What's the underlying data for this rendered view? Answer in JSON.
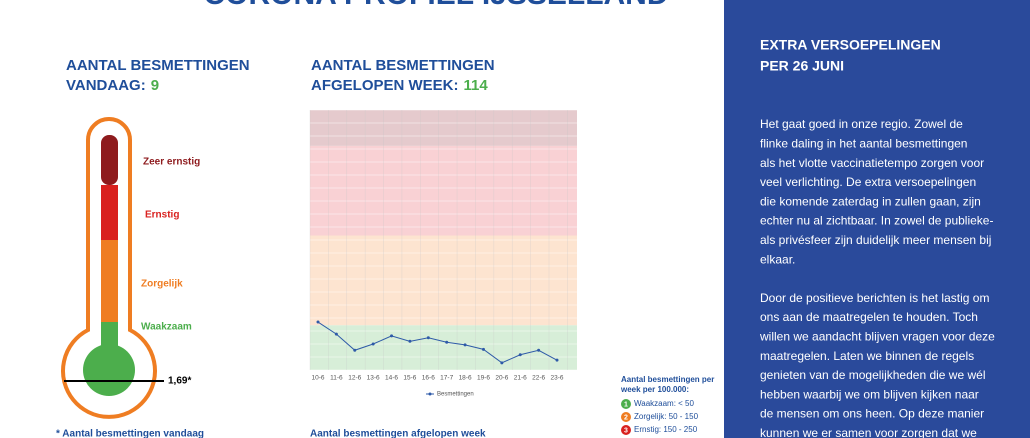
{
  "header": {
    "title": "CORONA PROFIEL IJSSELLAND"
  },
  "today": {
    "lines": [
      "AANTAL BESMETTINGEN",
      "VANDAAG:"
    ],
    "value": 9,
    "footnote": "* Aantal besmettingen vandaag"
  },
  "thermometer": {
    "levels": [
      {
        "label": "Zeer ernstig",
        "color": "#8e1b1e"
      },
      {
        "label": "Ernstig",
        "color": "#d9211f"
      },
      {
        "label": "Zorgelijk",
        "color": "#ef7d22"
      },
      {
        "label": "Waakzaam",
        "color": "#4cae4c"
      }
    ],
    "marker_label": "1,69*"
  },
  "week": {
    "lines": [
      "AANTAL BESMETTINGEN",
      "AFGELOPEN WEEK:"
    ],
    "value": 114,
    "footnote": "Aantal besmettingen afgelopen week"
  },
  "chart_data": {
    "type": "line",
    "categories": [
      "10-6",
      "11-6",
      "12-6",
      "13-6",
      "14-6",
      "15-6",
      "16-6",
      "17-7",
      "18-6",
      "19-6",
      "20-6",
      "21-6",
      "22-6",
      "23-6"
    ],
    "series": [
      {
        "name": "Besmettingen",
        "color": "#2e5aa8",
        "values": [
          53.5,
          40,
          22,
          29,
          38,
          32,
          36,
          31,
          28,
          23,
          8,
          17,
          22,
          11
        ]
      }
    ],
    "ylim": [
      0,
      290
    ],
    "bands": [
      {
        "from": 0,
        "to": 50,
        "color": "#d7eed8"
      },
      {
        "from": 50,
        "to": 150,
        "color": "#fde4d0"
      },
      {
        "from": 150,
        "to": 250,
        "color": "#f9d1d4"
      },
      {
        "from": 250,
        "to": 290,
        "color": "#e5cacd"
      }
    ]
  },
  "legend": {
    "title": [
      "Aantal besmettingen per",
      "week per 100.000:"
    ],
    "items": [
      {
        "number": "1",
        "label": "Waakzaam: < 50",
        "color": "#4cae4c"
      },
      {
        "number": "2",
        "label": "Zorgelijk: 50 - 150",
        "color": "#ef7d22"
      },
      {
        "number": "3",
        "label": "Ernstig: 150 - 250",
        "color": "#d9211f"
      }
    ]
  },
  "sidebar": {
    "title": [
      "EXTRA VERSOEPELINGEN",
      "PER 26 JUNI"
    ],
    "paragraphs": [
      [
        "Het gaat goed in onze regio. Zowel de",
        "flinke daling in het aantal besmettingen",
        "als het vlotte vaccinatietempo zorgen voor",
        "veel verlichting. De extra versoepelingen",
        "die komende zaterdag in zullen gaan, zijn",
        "echter nu al zichtbaar. In zowel de publieke-",
        "als privésfeer zijn duidelijk meer mensen bij",
        "elkaar."
      ],
      [
        "Door de positieve berichten is het lastig om",
        "ons aan de maatregelen te houden. Toch",
        "willen we aandacht blijven vragen voor deze",
        "maatregelen. Laten we binnen de regels",
        "genieten van de mogelijkheden die we wél",
        "hebben waarbij we om blijven kijken naar",
        "de mensen om ons heen. Op deze manier",
        "kunnen we er samen voor zorgen dat we"
      ]
    ]
  }
}
